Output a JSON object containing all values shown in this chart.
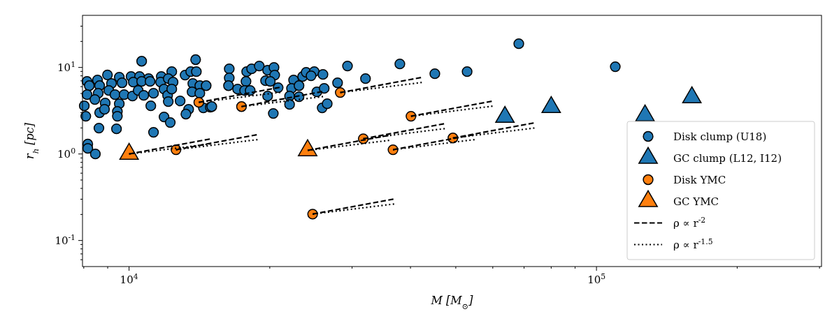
{
  "chart_data": {
    "type": "scatter",
    "xlabel": "M [M$_{⊙}$]",
    "ylabel": "r$_{h}$ [pc]",
    "log": "xy",
    "legend": "bottom right",
    "xlim": [
      7950,
      303000
    ],
    "ylim": [
      0.05,
      40
    ],
    "xticks": [
      {
        "value": 8000,
        "label": null
      },
      {
        "value": 9000,
        "label": null
      },
      {
        "value": 10000,
        "label": "10$^{4}$"
      },
      {
        "value": 20000,
        "label": null
      },
      {
        "value": 30000,
        "label": null
      },
      {
        "value": 40000,
        "label": null
      },
      {
        "value": 50000,
        "label": null
      },
      {
        "value": 60000,
        "label": null
      },
      {
        "value": 70000,
        "label": null
      },
      {
        "value": 80000,
        "label": null
      },
      {
        "value": 90000,
        "label": null
      },
      {
        "value": 100000,
        "label": "10$^{5}$"
      },
      {
        "value": 200000,
        "label": null
      },
      {
        "value": 300000,
        "label": null
      }
    ],
    "yticks": [
      {
        "value": 0.06,
        "label": null
      },
      {
        "value": 0.07,
        "label": null
      },
      {
        "value": 0.08,
        "label": null
      },
      {
        "value": 0.09,
        "label": null
      },
      {
        "value": 0.1,
        "label": "10$^{-1}$"
      },
      {
        "value": 0.2,
        "label": null
      },
      {
        "value": 0.3,
        "label": null
      },
      {
        "value": 0.4,
        "label": null
      },
      {
        "value": 0.5,
        "label": null
      },
      {
        "value": 0.6,
        "label": null
      },
      {
        "value": 0.7,
        "label": null
      },
      {
        "value": 0.8,
        "label": null
      },
      {
        "value": 0.9,
        "label": null
      },
      {
        "value": 1,
        "label": "10$^{0}$"
      },
      {
        "value": 2,
        "label": null
      },
      {
        "value": 3,
        "label": null
      },
      {
        "value": 4,
        "label": null
      },
      {
        "value": 5,
        "label": null
      },
      {
        "value": 6,
        "label": null
      },
      {
        "value": 7,
        "label": null
      },
      {
        "value": 8,
        "label": null
      },
      {
        "value": 9,
        "label": null
      },
      {
        "value": 10,
        "label": "10$^{1}$"
      },
      {
        "value": 20,
        "label": null
      },
      {
        "value": 30,
        "label": null
      }
    ],
    "series": [
      {
        "name": "Disk clump (U18)",
        "marker": "circle",
        "color": "#1f77b4",
        "x": [
          10640,
          13880,
          8990,
          8130,
          8560,
          9530,
          10100,
          10530,
          11010,
          11720,
          12340,
          13180,
          13550,
          13930,
          8220,
          8650,
          9170,
          9660,
          10210,
          10640,
          11090,
          11680,
          12130,
          12420,
          13690,
          14170,
          14620,
          8130,
          8590,
          9050,
          9330,
          9760,
          10170,
          10460,
          10750,
          11280,
          11880,
          12090,
          12340,
          12860,
          13640,
          14170,
          8020,
          8450,
          8890,
          9530,
          11130,
          12130,
          13410,
          14420,
          14920,
          8080,
          8650,
          8860,
          9440,
          9440,
          11880,
          12250,
          13230,
          8620,
          9400,
          11280,
          8160,
          8160,
          8470,
          16380,
          16380,
          16320,
          17850,
          18290,
          18990,
          19790,
          20420,
          20490,
          19590,
          20050,
          17790,
          17070,
          17670,
          18160,
          19790,
          20840,
          22490,
          22260,
          23100,
          22050,
          22050,
          20350,
          23520,
          23930,
          24900,
          25990,
          24510,
          23100,
          25220,
          26150,
          27930,
          25890,
          26540,
          29330,
          32050,
          15030,
          37960,
          45100,
          52870,
          68200,
          109700
        ],
        "values": [
          11.8,
          12.3,
          8.2,
          6.9,
          7.16,
          7.71,
          7.86,
          7.86,
          7.43,
          7.86,
          8.95,
          8.16,
          8.95,
          8.95,
          6.16,
          6.16,
          6.52,
          6.64,
          6.77,
          6.9,
          6.9,
          6.77,
          7.43,
          6.77,
          6.52,
          6.16,
          6.16,
          4.85,
          5.03,
          5.42,
          4.85,
          4.85,
          4.67,
          5.42,
          4.76,
          5.03,
          5.62,
          4.76,
          5.62,
          4.1,
          5.22,
          5.03,
          3.6,
          4.26,
          3.88,
          3.81,
          3.6,
          4.03,
          3.28,
          3.41,
          3.47,
          2.73,
          3.0,
          3.28,
          3.1,
          2.73,
          2.68,
          2.31,
          2.89,
          1.99,
          1.95,
          1.78,
          1.3,
          1.16,
          1.0,
          9.64,
          7.57,
          6.16,
          8.95,
          9.64,
          10.4,
          9.28,
          10.0,
          8.16,
          7.03,
          6.9,
          6.9,
          5.62,
          5.42,
          5.42,
          4.67,
          5.84,
          7.16,
          5.73,
          6.16,
          4.67,
          3.74,
          2.94,
          7.86,
          8.79,
          8.95,
          8.31,
          8.01,
          4.59,
          5.22,
          5.73,
          6.64,
          3.41,
          3.81,
          10.4,
          7.43,
          3.53,
          10.97,
          8.46,
          8.95,
          18.8,
          10.2
        ]
      },
      {
        "name": "GC clump (L12, I12)",
        "marker": "triangle",
        "color": "#1f77b4",
        "x": [
          63700,
          80000,
          127000,
          160000
        ],
        "values": [
          2.67,
          3.47,
          2.78,
          4.5
        ]
      },
      {
        "name": "Disk YMC",
        "marker": "circle",
        "color": "#ff7f0e",
        "x": [
          12600,
          14100,
          17400,
          28300,
          40100,
          31700,
          36700,
          49300,
          24700
        ],
        "values": [
          1.12,
          3.95,
          3.53,
          5.13,
          2.73,
          1.5,
          1.12,
          1.53,
          0.202
        ]
      },
      {
        "name": "GC YMC",
        "marker": "triangle",
        "color": "#ff7f0e",
        "x": [
          10000,
          24100
        ],
        "values": [
          1.0,
          1.1
        ]
      },
      {
        "name": "ρ ∝ r$^{-2}$",
        "type": "line",
        "line_style": "dashed",
        "color": "#000000",
        "x": [
          10000,
          15000
        ],
        "values": [
          1.0,
          1.5
        ]
      },
      {
        "type": "line",
        "line_style": "dashed",
        "color": "#000000",
        "x": [
          24100,
          36150
        ],
        "values": [
          1.1,
          1.65
        ]
      },
      {
        "type": "line",
        "line_style": "dashed",
        "color": "#000000",
        "x": [
          12600,
          18900
        ],
        "values": [
          1.12,
          1.68
        ]
      },
      {
        "type": "line",
        "line_style": "dashed",
        "color": "#000000",
        "x": [
          14100,
          21150
        ],
        "values": [
          3.95,
          5.93
        ]
      },
      {
        "type": "line",
        "line_style": "dashed",
        "color": "#000000",
        "x": [
          17400,
          26100
        ],
        "values": [
          3.53,
          5.3
        ]
      },
      {
        "type": "line",
        "line_style": "dashed",
        "color": "#000000",
        "x": [
          28300,
          42450
        ],
        "values": [
          5.13,
          7.7
        ]
      },
      {
        "type": "line",
        "line_style": "dashed",
        "color": "#000000",
        "x": [
          40100,
          60150
        ],
        "values": [
          2.73,
          4.1
        ]
      },
      {
        "type": "line",
        "line_style": "dashed",
        "color": "#000000",
        "x": [
          31700,
          47550
        ],
        "values": [
          1.5,
          2.25
        ]
      },
      {
        "type": "line",
        "line_style": "dashed",
        "color": "#000000",
        "x": [
          36700,
          55050
        ],
        "values": [
          1.12,
          1.68
        ]
      },
      {
        "type": "line",
        "line_style": "dashed",
        "color": "#000000",
        "x": [
          49300,
          73950
        ],
        "values": [
          1.53,
          2.3
        ]
      },
      {
        "type": "line",
        "line_style": "dashed",
        "color": "#000000",
        "x": [
          24700,
          37050
        ],
        "values": [
          0.202,
          0.303
        ]
      },
      {
        "name": "ρ ∝ r$^{-1.5}$",
        "type": "line",
        "line_style": "dotted",
        "color": "#000000",
        "x": [
          10000,
          15000
        ],
        "values": [
          1.0,
          1.31
        ]
      },
      {
        "type": "line",
        "line_style": "dotted",
        "color": "#000000",
        "x": [
          24100,
          36150
        ],
        "values": [
          1.1,
          1.44
        ]
      },
      {
        "type": "line",
        "line_style": "dotted",
        "color": "#000000",
        "x": [
          12600,
          18900
        ],
        "values": [
          1.12,
          1.47
        ]
      },
      {
        "type": "line",
        "line_style": "dotted",
        "color": "#000000",
        "x": [
          14100,
          21150
        ],
        "values": [
          3.95,
          5.17
        ]
      },
      {
        "type": "line",
        "line_style": "dotted",
        "color": "#000000",
        "x": [
          17400,
          26100
        ],
        "values": [
          3.53,
          4.62
        ]
      },
      {
        "type": "line",
        "line_style": "dotted",
        "color": "#000000",
        "x": [
          28300,
          42450
        ],
        "values": [
          5.13,
          6.72
        ]
      },
      {
        "type": "line",
        "line_style": "dotted",
        "color": "#000000",
        "x": [
          40100,
          60150
        ],
        "values": [
          2.73,
          3.58
        ]
      },
      {
        "type": "line",
        "line_style": "dotted",
        "color": "#000000",
        "x": [
          31700,
          47550
        ],
        "values": [
          1.5,
          1.97
        ]
      },
      {
        "type": "line",
        "line_style": "dotted",
        "color": "#000000",
        "x": [
          36700,
          55050
        ],
        "values": [
          1.12,
          1.47
        ]
      },
      {
        "type": "line",
        "line_style": "dotted",
        "color": "#000000",
        "x": [
          49300,
          73950
        ],
        "values": [
          1.53,
          2.0
        ]
      },
      {
        "type": "line",
        "line_style": "dotted",
        "color": "#000000",
        "x": [
          24700,
          37050
        ],
        "values": [
          0.202,
          0.265
        ]
      }
    ]
  }
}
